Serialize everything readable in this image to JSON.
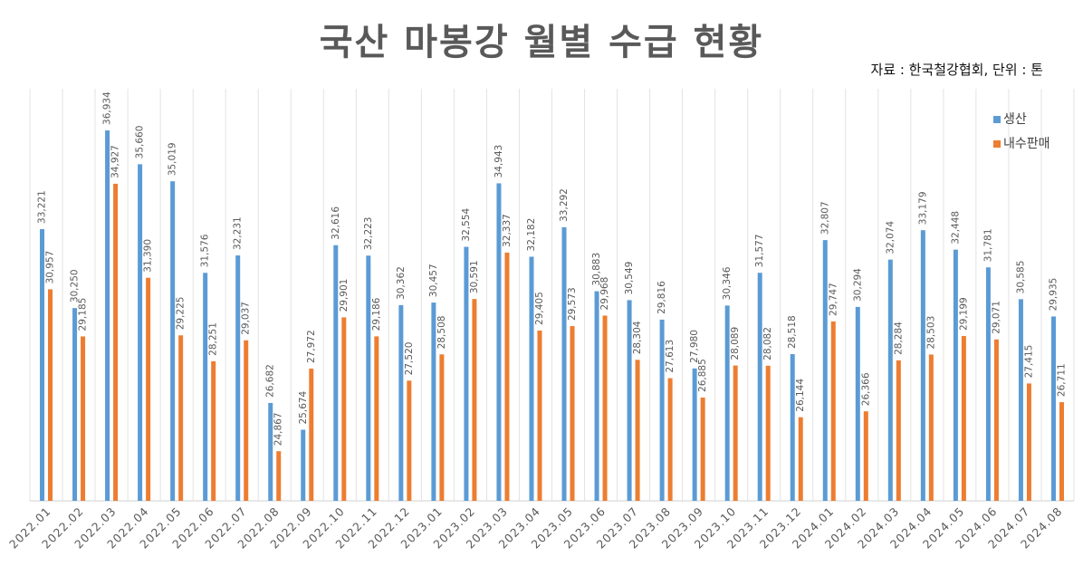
{
  "chart_data": {
    "type": "bar",
    "title": "국산 마봉강 월별 수급 현황",
    "source_note": "자료 : 한국철강협회, 단위 : 톤",
    "categories": [
      "2022.01",
      "2022.02",
      "2022.03",
      "2022.04",
      "2022.05",
      "2022.06",
      "2022.07",
      "2022.08",
      "2022.09",
      "2022.10",
      "2022.11",
      "2022.12",
      "2023.01",
      "2023.02",
      "2023.03",
      "2023.04",
      "2023.05",
      "2023.06",
      "2023.07",
      "2023.08",
      "2023.09",
      "2023.10",
      "2023.11",
      "2023.12",
      "2024.01",
      "2024.02",
      "2024.03",
      "2024.04",
      "2024.05",
      "2024.06",
      "2024.07",
      "2024.08"
    ],
    "series": [
      {
        "name": "생산",
        "color": "#5B9BD5",
        "values": [
          33221,
          30250,
          36934,
          35660,
          35019,
          31576,
          32231,
          26682,
          25674,
          32616,
          32223,
          30362,
          30457,
          32554,
          34943,
          32182,
          33292,
          30883,
          30549,
          29816,
          27980,
          30346,
          31577,
          28518,
          32807,
          30294,
          32074,
          33179,
          32448,
          31781,
          30585,
          29935
        ],
        "labels": [
          "33,221",
          "30,250",
          "36,934",
          "35,660",
          "35,019",
          "31,576",
          "32,231",
          "26,682",
          "25,674",
          "32,616",
          "32,223",
          "30,362",
          "30,457",
          "32,554",
          "34,943",
          "32,182",
          "33,292",
          "30,883",
          "30,549",
          "29,816",
          "27,980",
          "30,346",
          "31,577",
          "28,518",
          "32,807",
          "30,294",
          "32,074",
          "33,179",
          "32,448",
          "31,781",
          "30,585",
          "29,935"
        ]
      },
      {
        "name": "내수판매",
        "color": "#ED7D31",
        "values": [
          30957,
          29185,
          34927,
          31390,
          29225,
          28251,
          29037,
          24867,
          27972,
          29901,
          29186,
          27520,
          28508,
          30591,
          32337,
          29405,
          29573,
          29968,
          28304,
          27613,
          26885,
          28089,
          28082,
          26144,
          29747,
          26366,
          28284,
          28503,
          29199,
          29071,
          27415,
          26711
        ],
        "labels": [
          "30,957",
          "29,185",
          "34,927",
          "31,390",
          "29,225",
          "28,251",
          "29,037",
          "24,867",
          "27,972",
          "29,901",
          "29,186",
          "27,520",
          "28,508",
          "30,591",
          "32,337",
          "29,405",
          "29,573",
          "29,968",
          "28,304",
          "27,613",
          "26,885",
          "28,089",
          "28,082",
          "26,144",
          "29,747",
          "26,366",
          "28,284",
          "28,503",
          "29,199",
          "29,071",
          "27,415",
          "26,711"
        ]
      }
    ],
    "ylim": [
      23000,
      38500
    ],
    "y_axis_visible": false,
    "grid": "vertical category separators",
    "legend": "top-right"
  }
}
